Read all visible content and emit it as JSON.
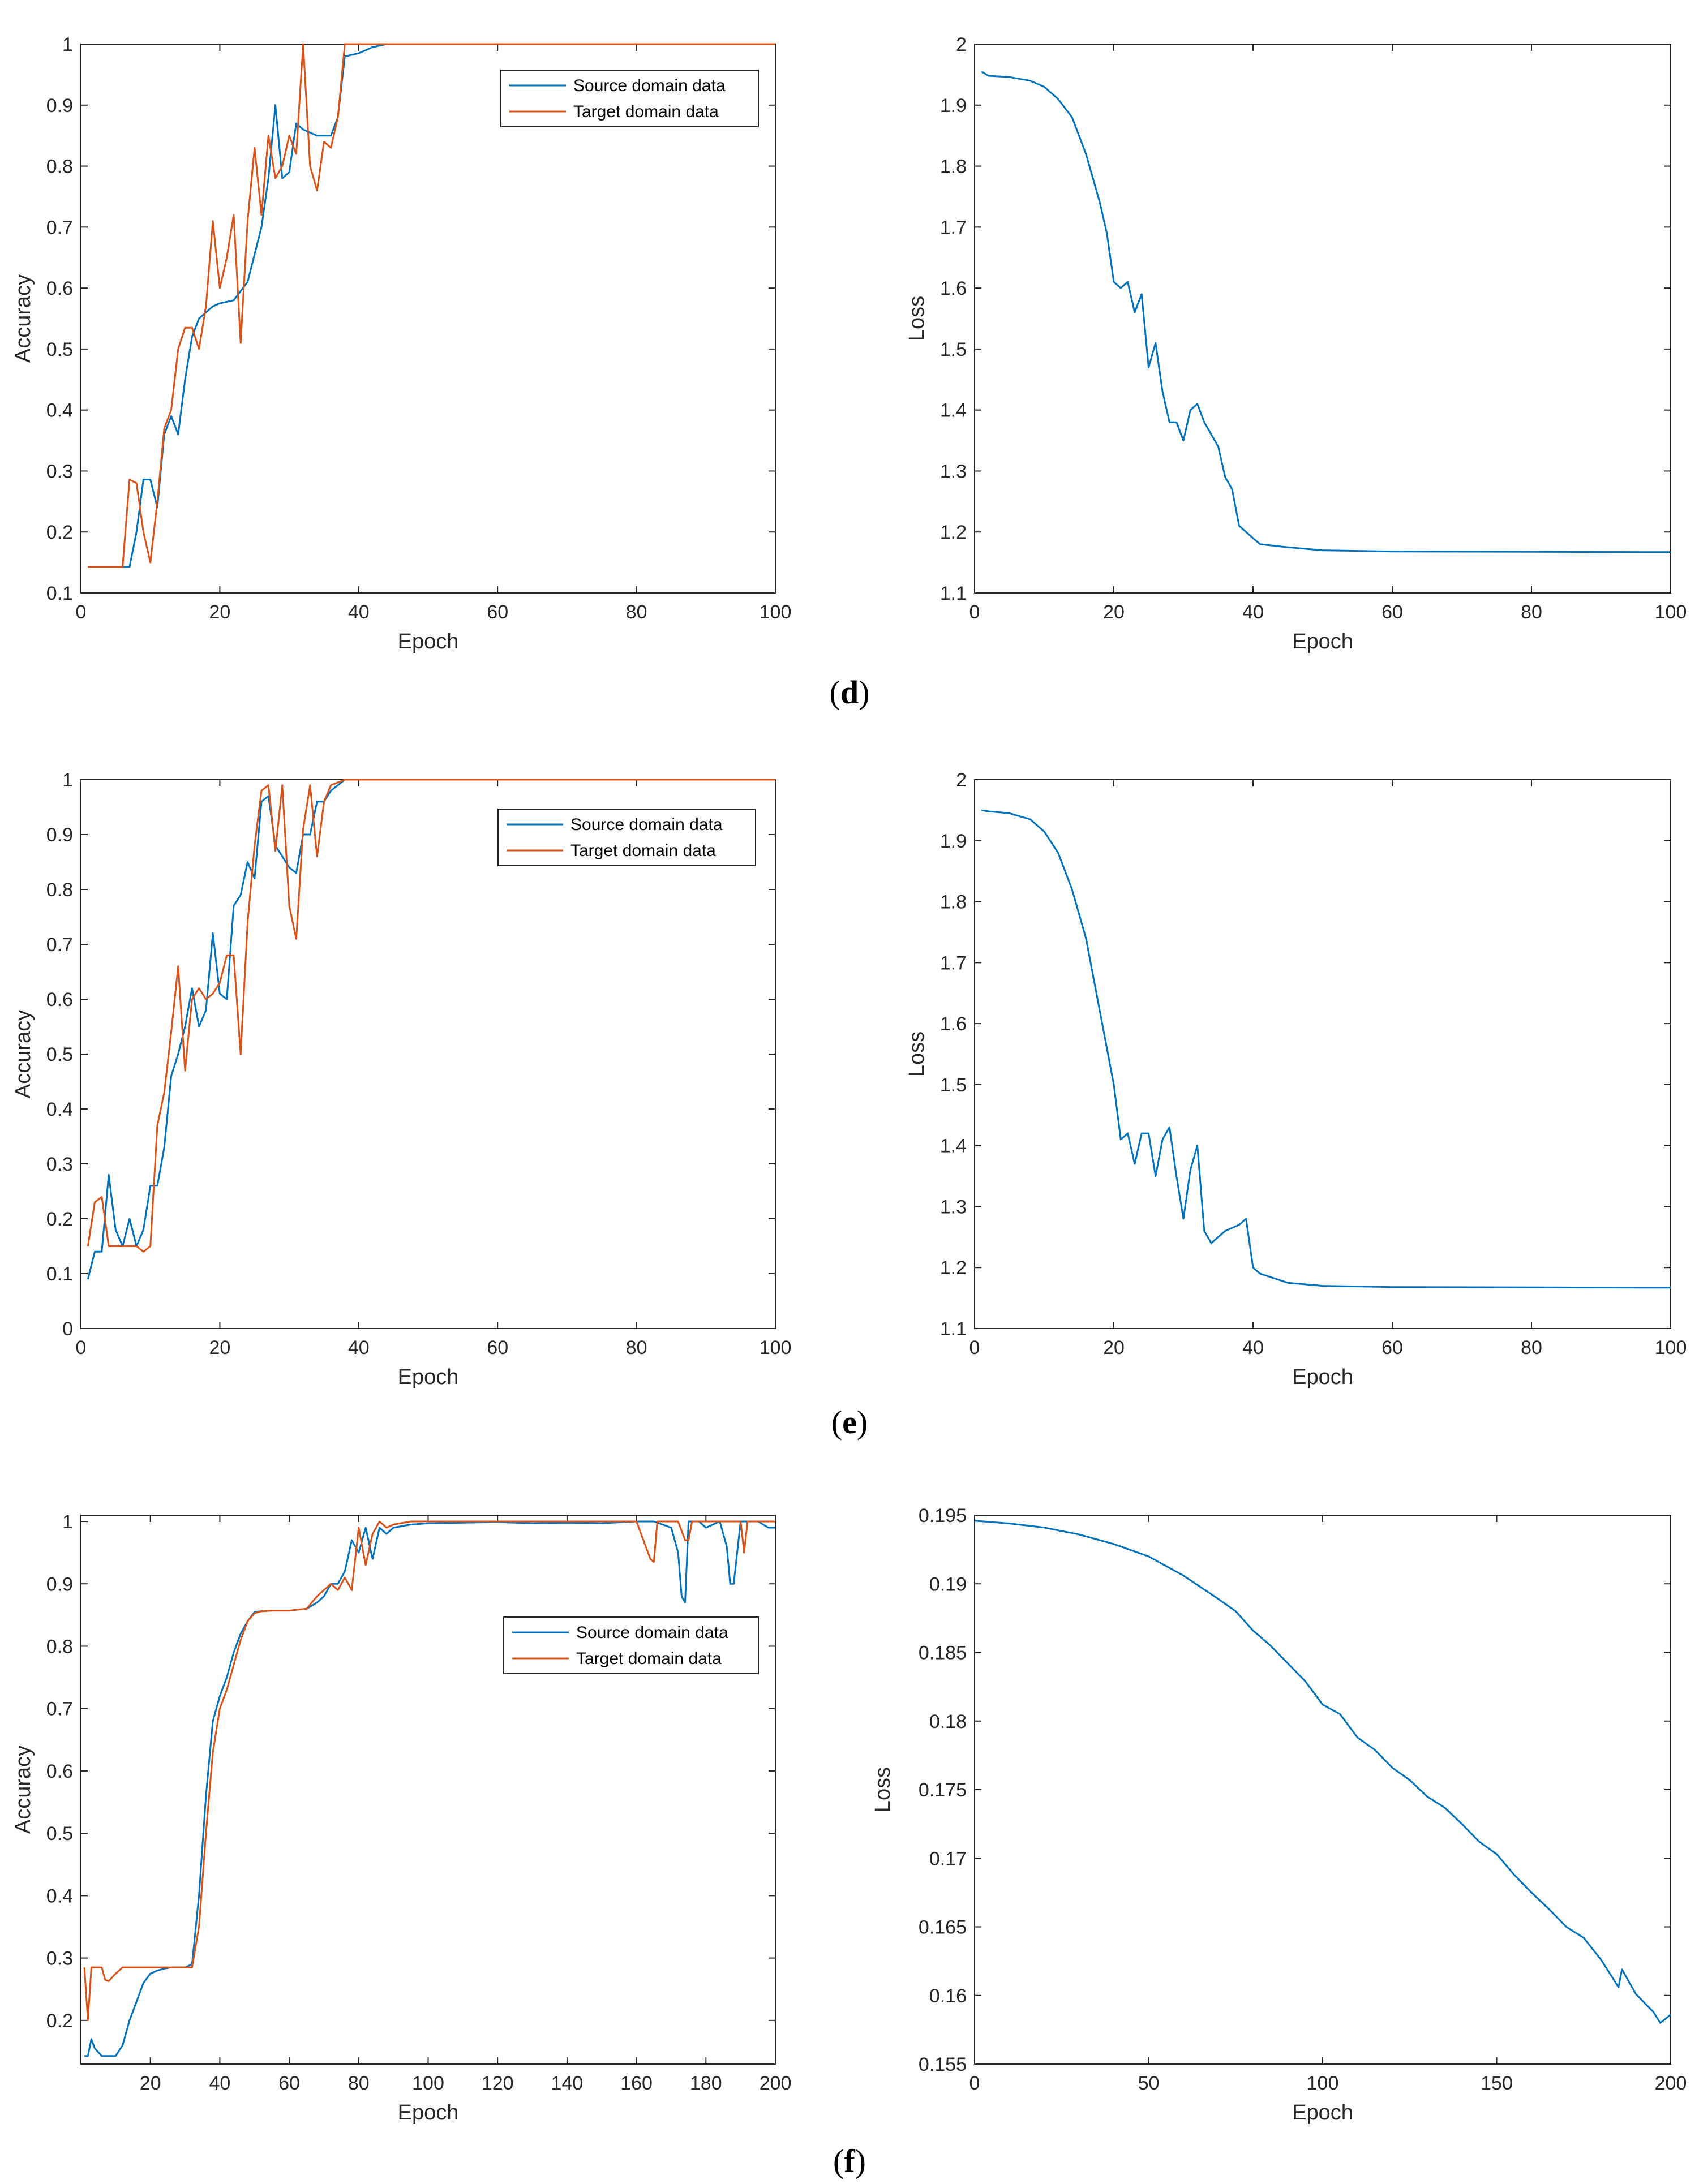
{
  "colors": {
    "source": "#0072BD",
    "target": "#D95319",
    "axis": "#262626"
  },
  "panel_labels": {
    "d": "d",
    "e": "e",
    "f": "f"
  },
  "chart_data": [
    {
      "id": "d-accuracy",
      "type": "line",
      "xlabel": "Epoch",
      "ylabel": "Accuracy",
      "xlim": [
        0,
        100
      ],
      "ylim": [
        0.1,
        1
      ],
      "xticks": [
        0,
        20,
        40,
        60,
        80,
        100
      ],
      "yticks": [
        0.1,
        0.2,
        0.3,
        0.4,
        0.5,
        0.6,
        0.7,
        0.8,
        0.9,
        1
      ],
      "legend": {
        "location": "top-right",
        "entries": [
          "Source domain data",
          "Target domain data"
        ]
      },
      "series": [
        {
          "name": "Source domain data",
          "color": "#0072BD",
          "x": [
            1,
            7,
            8,
            9,
            10,
            11,
            12,
            13,
            14,
            15,
            16,
            17,
            18,
            19,
            20,
            22,
            24,
            26,
            27,
            28,
            29,
            30,
            31,
            32,
            34,
            36,
            37,
            38,
            40,
            42,
            44,
            100
          ],
          "y": [
            0.143,
            0.143,
            0.2,
            0.286,
            0.286,
            0.24,
            0.36,
            0.39,
            0.36,
            0.45,
            0.52,
            0.55,
            0.56,
            0.57,
            0.575,
            0.58,
            0.61,
            0.7,
            0.78,
            0.9,
            0.78,
            0.79,
            0.87,
            0.86,
            0.85,
            0.85,
            0.88,
            0.98,
            0.985,
            0.995,
            1.0,
            1.0
          ]
        },
        {
          "name": "Target domain data",
          "color": "#D95319",
          "x": [
            1,
            6,
            7,
            8,
            9,
            10,
            11,
            12,
            13,
            14,
            15,
            16,
            17,
            18,
            19,
            20,
            21,
            22,
            23,
            24,
            25,
            26,
            27,
            28,
            29,
            30,
            31,
            32,
            33,
            34,
            35,
            36,
            37,
            38,
            40,
            100
          ],
          "y": [
            0.143,
            0.143,
            0.286,
            0.28,
            0.2,
            0.15,
            0.25,
            0.37,
            0.4,
            0.5,
            0.535,
            0.535,
            0.5,
            0.57,
            0.71,
            0.6,
            0.65,
            0.72,
            0.51,
            0.71,
            0.83,
            0.72,
            0.85,
            0.78,
            0.8,
            0.85,
            0.82,
            1.0,
            0.8,
            0.76,
            0.84,
            0.83,
            0.88,
            1.0,
            1.0,
            1.0
          ]
        }
      ]
    },
    {
      "id": "d-loss",
      "type": "line",
      "xlabel": "Epoch",
      "ylabel": "Loss",
      "xlim": [
        0,
        100
      ],
      "ylim": [
        1.1,
        2
      ],
      "xticks": [
        0,
        20,
        40,
        60,
        80,
        100
      ],
      "yticks": [
        1.1,
        1.2,
        1.3,
        1.4,
        1.5,
        1.6,
        1.7,
        1.8,
        1.9,
        2
      ],
      "series": [
        {
          "name": "Loss",
          "color": "#0072BD",
          "x": [
            1,
            2,
            5,
            8,
            10,
            12,
            14,
            16,
            18,
            19,
            20,
            21,
            22,
            23,
            24,
            25,
            26,
            27,
            28,
            29,
            30,
            31,
            32,
            33,
            34,
            35,
            36,
            37,
            38,
            39,
            40,
            41,
            45,
            50,
            60,
            100
          ],
          "y": [
            1.955,
            1.948,
            1.946,
            1.94,
            1.93,
            1.91,
            1.88,
            1.82,
            1.74,
            1.69,
            1.61,
            1.6,
            1.61,
            1.56,
            1.59,
            1.47,
            1.51,
            1.43,
            1.38,
            1.38,
            1.35,
            1.4,
            1.41,
            1.38,
            1.36,
            1.34,
            1.29,
            1.27,
            1.21,
            1.2,
            1.19,
            1.18,
            1.175,
            1.17,
            1.168,
            1.167
          ]
        }
      ]
    },
    {
      "id": "e-accuracy",
      "type": "line",
      "xlabel": "Epoch",
      "ylabel": "Accuracy",
      "xlim": [
        0,
        100
      ],
      "ylim": [
        0,
        1
      ],
      "xticks": [
        0,
        20,
        40,
        60,
        80,
        100
      ],
      "yticks": [
        0,
        0.1,
        0.2,
        0.3,
        0.4,
        0.5,
        0.6,
        0.7,
        0.8,
        0.9,
        1
      ],
      "legend": {
        "location": "top-right",
        "entries": [
          "Source domain data",
          "Target domain data"
        ]
      },
      "series": [
        {
          "name": "Source domain data",
          "color": "#0072BD",
          "x": [
            1,
            2,
            3,
            4,
            5,
            6,
            7,
            8,
            9,
            10,
            11,
            12,
            13,
            14,
            15,
            16,
            17,
            18,
            19,
            20,
            21,
            22,
            23,
            24,
            25,
            26,
            27,
            28,
            30,
            31,
            32,
            33,
            34,
            35,
            36,
            38,
            40,
            100
          ],
          "y": [
            0.09,
            0.14,
            0.14,
            0.28,
            0.18,
            0.15,
            0.2,
            0.15,
            0.18,
            0.26,
            0.26,
            0.33,
            0.46,
            0.5,
            0.55,
            0.62,
            0.55,
            0.58,
            0.72,
            0.61,
            0.6,
            0.77,
            0.79,
            0.85,
            0.82,
            0.96,
            0.97,
            0.88,
            0.84,
            0.83,
            0.9,
            0.9,
            0.96,
            0.96,
            0.98,
            1.0,
            1.0,
            1.0
          ]
        },
        {
          "name": "Target domain data",
          "color": "#D95319",
          "x": [
            1,
            2,
            3,
            4,
            5,
            6,
            8,
            9,
            10,
            11,
            12,
            13,
            14,
            15,
            16,
            17,
            18,
            19,
            20,
            21,
            22,
            23,
            24,
            25,
            26,
            27,
            28,
            29,
            30,
            31,
            32,
            33,
            34,
            35,
            36,
            38,
            100
          ],
          "y": [
            0.15,
            0.23,
            0.24,
            0.15,
            0.15,
            0.15,
            0.15,
            0.14,
            0.15,
            0.37,
            0.43,
            0.54,
            0.66,
            0.47,
            0.6,
            0.62,
            0.6,
            0.61,
            0.63,
            0.68,
            0.68,
            0.5,
            0.74,
            0.88,
            0.98,
            0.99,
            0.87,
            0.99,
            0.77,
            0.71,
            0.91,
            0.99,
            0.86,
            0.96,
            0.99,
            1.0,
            1.0
          ]
        }
      ]
    },
    {
      "id": "e-loss",
      "type": "line",
      "xlabel": "Epoch",
      "ylabel": "Loss",
      "xlim": [
        0,
        100
      ],
      "ylim": [
        1.1,
        2
      ],
      "xticks": [
        0,
        20,
        40,
        60,
        80,
        100
      ],
      "yticks": [
        1.1,
        1.2,
        1.3,
        1.4,
        1.5,
        1.6,
        1.7,
        1.8,
        1.9,
        2
      ],
      "series": [
        {
          "name": "Loss",
          "color": "#0072BD",
          "x": [
            1,
            2,
            5,
            8,
            10,
            12,
            14,
            16,
            18,
            19,
            20,
            21,
            22,
            23,
            24,
            25,
            26,
            27,
            28,
            29,
            30,
            31,
            32,
            33,
            34,
            35,
            36,
            38,
            39,
            40,
            41,
            45,
            50,
            60,
            100
          ],
          "y": [
            1.95,
            1.948,
            1.945,
            1.935,
            1.915,
            1.88,
            1.82,
            1.74,
            1.62,
            1.56,
            1.5,
            1.41,
            1.42,
            1.37,
            1.42,
            1.42,
            1.35,
            1.41,
            1.43,
            1.35,
            1.28,
            1.36,
            1.4,
            1.26,
            1.24,
            1.25,
            1.26,
            1.27,
            1.28,
            1.2,
            1.19,
            1.175,
            1.17,
            1.168,
            1.167
          ]
        }
      ]
    },
    {
      "id": "f-accuracy",
      "type": "line",
      "xlabel": "Epoch",
      "ylabel": "Accuracy",
      "xlim": [
        0,
        200
      ],
      "ylim": [
        0.13,
        1.01
      ],
      "xticks": [
        20,
        40,
        60,
        80,
        100,
        120,
        140,
        160,
        180,
        200
      ],
      "yticks": [
        0.2,
        0.3,
        0.4,
        0.5,
        0.6,
        0.7,
        0.8,
        0.9,
        1
      ],
      "legend": {
        "location": "center-right",
        "entries": [
          "Source domain data",
          "Target domain data"
        ]
      },
      "series": [
        {
          "name": "Source domain data",
          "color": "#0072BD",
          "x": [
            1,
            2,
            3,
            4,
            6,
            8,
            10,
            12,
            14,
            16,
            18,
            20,
            22,
            24,
            26,
            28,
            30,
            32,
            34,
            36,
            38,
            40,
            42,
            44,
            46,
            48,
            50,
            52,
            55,
            60,
            65,
            68,
            70,
            72,
            74,
            76,
            78,
            80,
            82,
            84,
            86,
            88,
            90,
            95,
            100,
            110,
            120,
            130,
            140,
            150,
            160,
            165,
            170,
            172,
            173,
            174,
            175,
            178,
            180,
            184,
            186,
            187,
            188,
            190,
            195,
            198,
            200
          ],
          "y": [
            0.143,
            0.143,
            0.17,
            0.155,
            0.143,
            0.143,
            0.143,
            0.16,
            0.2,
            0.23,
            0.26,
            0.275,
            0.28,
            0.283,
            0.285,
            0.285,
            0.285,
            0.29,
            0.4,
            0.56,
            0.68,
            0.72,
            0.75,
            0.79,
            0.82,
            0.84,
            0.855,
            0.856,
            0.857,
            0.857,
            0.86,
            0.87,
            0.88,
            0.9,
            0.9,
            0.92,
            0.97,
            0.95,
            0.99,
            0.94,
            0.99,
            0.98,
            0.99,
            0.995,
            0.997,
            0.998,
            0.999,
            0.997,
            0.998,
            0.997,
            1.0,
            1.0,
            0.99,
            0.95,
            0.88,
            0.87,
            1.0,
            1.0,
            0.99,
            1.0,
            0.96,
            0.9,
            0.9,
            1.0,
            1.0,
            0.99,
            0.99
          ]
        },
        {
          "name": "Target domain data",
          "color": "#D95319",
          "x": [
            1,
            2,
            3,
            6,
            7,
            8,
            10,
            12,
            15,
            20,
            25,
            30,
            32,
            34,
            36,
            38,
            40,
            42,
            44,
            46,
            48,
            50,
            52,
            55,
            60,
            65,
            68,
            70,
            72,
            74,
            76,
            78,
            80,
            82,
            84,
            86,
            88,
            90,
            95,
            100,
            120,
            140,
            160,
            164,
            165,
            166,
            168,
            172,
            174,
            175,
            176,
            178,
            180,
            190,
            191,
            192,
            195,
            200
          ],
          "y": [
            0.285,
            0.2,
            0.285,
            0.285,
            0.265,
            0.263,
            0.275,
            0.285,
            0.285,
            0.285,
            0.285,
            0.285,
            0.285,
            0.35,
            0.5,
            0.63,
            0.7,
            0.73,
            0.77,
            0.81,
            0.84,
            0.853,
            0.856,
            0.857,
            0.857,
            0.86,
            0.88,
            0.89,
            0.9,
            0.89,
            0.91,
            0.89,
            0.99,
            0.93,
            0.98,
            1.0,
            0.99,
            0.995,
            1.0,
            1.0,
            1.0,
            1.0,
            1.0,
            0.94,
            0.935,
            1.0,
            1.0,
            1.0,
            0.97,
            0.97,
            1.0,
            1.0,
            1.0,
            1.0,
            0.95,
            1.0,
            1.0,
            1.0
          ]
        }
      ]
    },
    {
      "id": "f-loss",
      "type": "line",
      "xlabel": "Epoch",
      "ylabel": "Loss",
      "xlim": [
        0,
        200
      ],
      "ylim": [
        0.155,
        0.195
      ],
      "xticks": [
        0,
        50,
        100,
        150,
        200
      ],
      "yticks": [
        0.155,
        0.16,
        0.165,
        0.17,
        0.175,
        0.18,
        0.185,
        0.19,
        0.195
      ],
      "series": [
        {
          "name": "Loss",
          "color": "#0072BD",
          "x": [
            0,
            10,
            20,
            30,
            40,
            50,
            60,
            70,
            75,
            80,
            85,
            90,
            95,
            100,
            105,
            110,
            115,
            120,
            125,
            130,
            135,
            140,
            145,
            150,
            155,
            160,
            165,
            170,
            175,
            180,
            185,
            186,
            190,
            195,
            197,
            200
          ],
          "y": [
            0.1946,
            0.1944,
            0.1941,
            0.1936,
            0.1929,
            0.192,
            0.1906,
            0.1889,
            0.188,
            0.1866,
            0.1855,
            0.1842,
            0.1829,
            0.1812,
            0.1805,
            0.1788,
            0.1779,
            0.1766,
            0.1757,
            0.1745,
            0.1737,
            0.1725,
            0.1712,
            0.1703,
            0.1688,
            0.1675,
            0.1663,
            0.165,
            0.1642,
            0.1626,
            0.1606,
            0.1619,
            0.1601,
            0.1588,
            0.158,
            0.1586
          ]
        }
      ]
    }
  ]
}
